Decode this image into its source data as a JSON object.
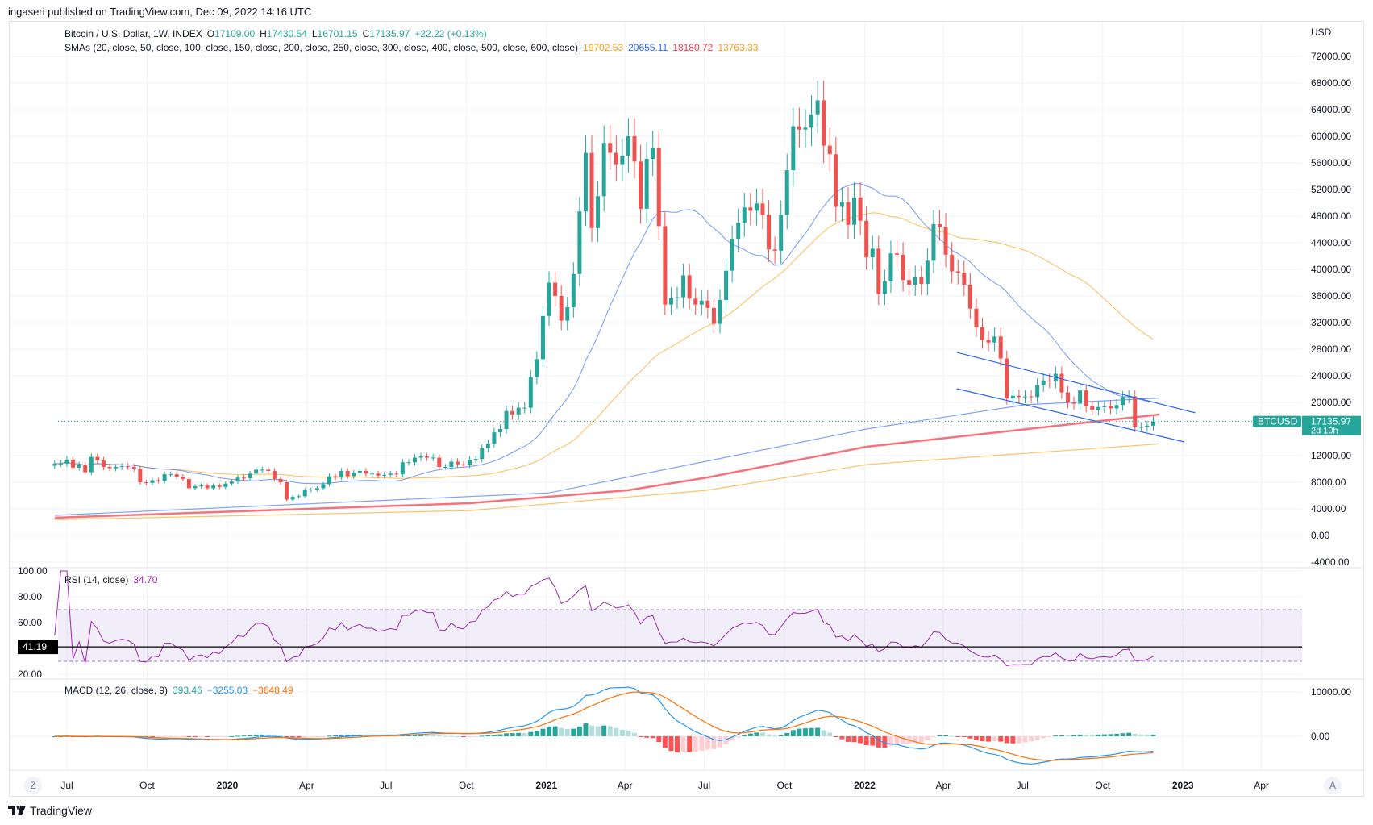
{
  "header": {
    "published": "ingaseri published on TradingView.com, Dec 09, 2022 14:16 UTC"
  },
  "legend": {
    "symbol": "Bitcoin / U.S. Dollar, 1W, INDEX",
    "o_label": "O",
    "o": "17109.00",
    "h_label": "H",
    "h": "17430.54",
    "l_label": "L",
    "l": "16701.15",
    "c_label": "C",
    "c": "17135.97",
    "change": "+22.22 (+0.13%)",
    "sma_title": "SMAs (20, close, 50, close, 100, close, 150, close, 200, close, 250, close, 300, close, 400, close, 500, close, 600, close)",
    "sma_values": [
      "19702.53",
      "20655.11",
      "18180.72",
      "13763.33"
    ],
    "sma_colors": [
      "#ff9800",
      "#2962ff",
      "#f23645",
      "#ff9800"
    ]
  },
  "price_axis": {
    "currency": "USD",
    "ticks": [
      "72000.00",
      "68000.00",
      "64000.00",
      "60000.00",
      "56000.00",
      "52000.00",
      "48000.00",
      "44000.00",
      "40000.00",
      "36000.00",
      "32000.00",
      "28000.00",
      "24000.00",
      "20000.00",
      "12000.00",
      "8000.00",
      "4000.00",
      "0.00",
      "-4000.00"
    ]
  },
  "last_price": {
    "symbol": "BTCUSD",
    "value": "17135.97",
    "countdown": "2d 10h"
  },
  "rsi": {
    "title": "RSI (14, close)",
    "value": "34.70",
    "ticks": [
      "100.00",
      "80.00",
      "60.00",
      "20.00"
    ],
    "crosshair_value": "41.19",
    "upper_band": 70,
    "lower_band": 30
  },
  "macd": {
    "title": "MACD (12, 26, close, 9)",
    "hist": "393.46",
    "macd": "−3255.03",
    "signal": "−3648.49",
    "ticks": [
      "10000.00",
      "0.00"
    ]
  },
  "time_axis": {
    "ticks": [
      "Jul",
      "Oct",
      "2020",
      "Apr",
      "Jul",
      "Oct",
      "2021",
      "Apr",
      "Jul",
      "Oct",
      "2022",
      "Apr",
      "Jul",
      "Oct",
      "2023",
      "Apr"
    ],
    "bold": [
      "2020",
      "2021",
      "2022",
      "2023"
    ],
    "left_button": "Z",
    "right_button": "A"
  },
  "footer": {
    "brand": "TradingView"
  },
  "colors": {
    "up": "#26a69a",
    "down": "#ef5350",
    "rsi": "#9c27b0",
    "macd": "#2196f3",
    "signal": "#ff6d00",
    "trendline": "#2962ff"
  },
  "chart_data": {
    "type": "candlestick",
    "interval": "1W",
    "first_week": "2019-06-17",
    "ylim": [
      -4000,
      72000
    ],
    "close": [
      10800,
      10800,
      11400,
      10200,
      10600,
      9500,
      11800,
      11300,
      10300,
      10100,
      10300,
      10400,
      10300,
      10000,
      8000,
      7900,
      8300,
      8200,
      9200,
      9200,
      8800,
      8500,
      7100,
      7400,
      7500,
      7100,
      7500,
      7300,
      7800,
      8100,
      8700,
      8600,
      9300,
      9900,
      9900,
      9700,
      8500,
      8000,
      5400,
      5800,
      5900,
      6800,
      6900,
      7100,
      7700,
      8900,
      8700,
      9700,
      8900,
      9400,
      9700,
      9300,
      9300,
      9000,
      9100,
      9300,
      9200,
      11000,
      11000,
      11700,
      11900,
      11700,
      11700,
      10300,
      10300,
      11100,
      10700,
      10600,
      11400,
      11500,
      13100,
      13800,
      15500,
      16000,
      18700,
      18200,
      19200,
      19200,
      23800,
      26500,
      33000,
      38000,
      36000,
      32300,
      34300,
      39300,
      48700,
      57500,
      46200,
      51000,
      59000,
      57500,
      55800,
      57100,
      60000,
      56200,
      49100,
      56600,
      58200,
      46500,
      34700,
      35700,
      35800,
      39100,
      35600,
      34700,
      35300,
      34200,
      31800,
      35400,
      39800,
      44600,
      47000,
      49300,
      48800,
      49900,
      48200,
      43000,
      42800,
      48200,
      54900,
      61500,
      61000,
      61300,
      63300,
      65400,
      58600,
      57300,
      49400,
      50100,
      46700,
      50800,
      47300,
      41800,
      43100,
      36300,
      38200,
      42400,
      42200,
      38400,
      37700,
      38800,
      37800,
      41300,
      46800,
      46400,
      42200,
      39700,
      39500,
      37700,
      34100,
      31300,
      29400,
      29000,
      29900,
      26600,
      20600,
      21000,
      20800,
      20900,
      20800,
      22600,
      23300,
      23200,
      24300,
      21500,
      20000,
      19800,
      21800,
      19400,
      18900,
      19300,
      19400,
      19100,
      19600,
      20800,
      20900,
      16300,
      16300,
      16500,
      17136
    ],
    "long_sma_lines": [
      {
        "color": "#2962ff",
        "points": [
          [
            0,
            3030
          ],
          [
            81,
            6400
          ],
          [
            133,
            16000
          ],
          [
            159,
            19650
          ],
          [
            181,
            20655
          ]
        ]
      },
      {
        "color": "#f23645",
        "points": [
          [
            0,
            2670
          ],
          [
            68,
            4850
          ],
          [
            94,
            6800
          ],
          [
            107,
            8730
          ],
          [
            133,
            13330
          ],
          [
            181,
            18180
          ]
        ]
      },
      {
        "color": "#ff9800",
        "points": [
          [
            0,
            2370
          ],
          [
            68,
            3740
          ],
          [
            107,
            6800
          ],
          [
            133,
            10660
          ],
          [
            181,
            13763
          ]
        ]
      }
    ],
    "trendlines": [
      {
        "from": [
          147.8,
          27520
        ],
        "to": [
          186.9,
          18430
        ]
      },
      {
        "from": [
          147.8,
          22060
        ],
        "to": [
          185.1,
          14060
        ]
      }
    ]
  }
}
